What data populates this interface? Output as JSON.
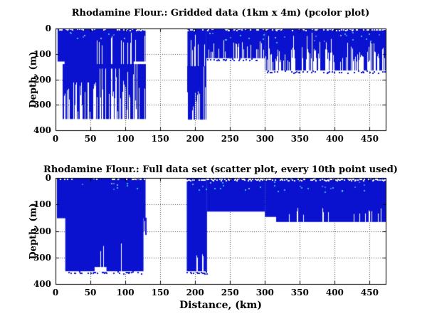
{
  "figure": {
    "background": "#ffffff",
    "axis_color": "#000000",
    "grid_color": "#4a4a4a",
    "text_color": "#000000"
  },
  "chart_data": [
    {
      "type": "pcolor",
      "title": "Rhodamine Flour.: Gridded data (1km x 4m) (pcolor plot)",
      "ylabel": "Depth, (m)",
      "xlabel": "",
      "xlim": [
        0,
        473
      ],
      "ylim": [
        0,
        400
      ],
      "y_axis_inverted": true,
      "grid": "dotted",
      "xticks": [
        0,
        50,
        100,
        150,
        200,
        250,
        300,
        350,
        400,
        450
      ],
      "yticks": [
        0,
        100,
        200,
        300,
        400
      ],
      "data_color": "#0a12d0",
      "speck_colors": [
        "#4f6fe0",
        "#2fb7e8",
        "#8fa8f0"
      ],
      "regions": [
        {
          "kind": "solid",
          "x0": 3,
          "x1": 129,
          "d0": 0,
          "d1": 130
        },
        {
          "kind": "solid",
          "x0": 13,
          "x1": 112,
          "d0": 0,
          "d1": 158
        },
        {
          "kind": "solid",
          "x0": 17,
          "x1": 62,
          "d0": 0,
          "d1": 212
        },
        {
          "kind": "streaks",
          "x0": 10,
          "x1": 129,
          "d0": 140,
          "d1": 356,
          "p_full": 0.55,
          "p_partial": 0.33,
          "d_min": 170,
          "d_max": 330,
          "seed": 11
        },
        {
          "kind": "white_cuts",
          "x0": 58,
          "x1": 128,
          "p": 0.14,
          "t_min": 15,
          "t_max": 70,
          "d1": 140,
          "w": 1,
          "seed": 12
        },
        {
          "kind": "solid",
          "x0": 189,
          "x1": 216,
          "d0": 0,
          "d1": 150
        },
        {
          "kind": "streaks",
          "x0": 189,
          "x1": 216,
          "d0": 148,
          "d1": 358,
          "p_full": 0.55,
          "p_partial": 0.35,
          "d_min": 200,
          "d_max": 340,
          "seed": 13
        },
        {
          "kind": "white_cuts",
          "x0": 190,
          "x1": 215,
          "p": 0.2,
          "t_min": 12,
          "t_max": 90,
          "d1": 148,
          "w": 1,
          "seed": 14
        },
        {
          "kind": "solid",
          "x0": 216,
          "x1": 300,
          "d0": 0,
          "d1": 117
        },
        {
          "kind": "dashes",
          "color": "#0a12d0",
          "x0": 217,
          "x1": 299,
          "d0": 117,
          "d1": 124,
          "p": 0.3,
          "w": 2,
          "h": 2,
          "seed": 15
        },
        {
          "kind": "white_cuts",
          "x0": 218,
          "x1": 299,
          "p": 0.28,
          "t_min": 45,
          "t_max": 95,
          "d1": 117,
          "w": 1,
          "seed": 16
        },
        {
          "kind": "solid",
          "x0": 300,
          "x1": 473,
          "d0": 0,
          "d1": 165
        },
        {
          "kind": "dashes",
          "color": "#0a12d0",
          "x0": 301,
          "x1": 472,
          "d0": 165,
          "d1": 173,
          "p": 0.3,
          "w": 2,
          "h": 2,
          "seed": 17
        },
        {
          "kind": "white_cuts",
          "x0": 301,
          "x1": 472,
          "p": 0.4,
          "t_min": 70,
          "t_max": 135,
          "d1": 165,
          "w": 1,
          "seed": 18
        },
        {
          "kind": "white_cuts",
          "x0": 305,
          "x1": 470,
          "p": 0.06,
          "t_min": 15,
          "t_max": 60,
          "d1": 165,
          "w": 1,
          "seed": 19
        },
        {
          "kind": "dashes",
          "color": "#ffffff",
          "x0": 4,
          "x1": 472,
          "d0": 0,
          "d1": 5,
          "p": 0.4,
          "w": 2,
          "h": 2,
          "seed": 20
        },
        {
          "kind": "specks",
          "n": 26,
          "x0": 218,
          "x1": 470,
          "d0": 12,
          "d1": 55,
          "seed": 21
        },
        {
          "kind": "specks",
          "n": 9,
          "x0": 20,
          "x1": 120,
          "d0": 12,
          "d1": 50,
          "seed": 22
        }
      ]
    },
    {
      "type": "scatter",
      "title": "Rhodamine Flour.: Full data set (scatter plot, every 10th point used)",
      "ylabel": "Depth, (m)",
      "xlabel": "Distance, (km)",
      "xlim": [
        0,
        473
      ],
      "ylim": [
        0,
        400
      ],
      "y_axis_inverted": true,
      "grid": "dotted",
      "xticks": [
        0,
        50,
        100,
        150,
        200,
        250,
        300,
        350,
        400,
        450
      ],
      "yticks": [
        0,
        100,
        200,
        300,
        400
      ],
      "data_color": "#0a12d0",
      "speck_colors": [
        "#4f6fe0",
        "#2fb7e8",
        "#8fa8f0"
      ],
      "regions": [
        {
          "kind": "solid",
          "x0": 2,
          "x1": 129,
          "d0": 0,
          "d1": 152
        },
        {
          "kind": "solid",
          "x0": 14,
          "x1": 126,
          "d0": 150,
          "d1": 352
        },
        {
          "kind": "streaks",
          "x0": 126,
          "x1": 130,
          "d0": 150,
          "d1": 215,
          "p_full": 0.5,
          "p_partial": 0.5,
          "d_min": 160,
          "d_max": 210,
          "seed": 31
        },
        {
          "kind": "white_rect",
          "x0": 56,
          "x1": 73,
          "d0": 336,
          "d1": 352
        },
        {
          "kind": "white_cuts",
          "x0": 58,
          "x1": 98,
          "p": 0.12,
          "t_min": 245,
          "t_max": 300,
          "d1": 352,
          "w": 1,
          "seed": 32
        },
        {
          "kind": "dashes",
          "color": "#0a12d0",
          "x0": 14,
          "x1": 126,
          "d0": 352,
          "d1": 359,
          "p": 0.55,
          "w": 2,
          "h": 2,
          "seed": 33
        },
        {
          "kind": "solid",
          "x0": 188,
          "x1": 217,
          "d0": 0,
          "d1": 352
        },
        {
          "kind": "white_cuts",
          "x0": 200,
          "x1": 215,
          "p": 0.2,
          "t_min": 285,
          "t_max": 305,
          "d1": 352,
          "w": 1,
          "seed": 34
        },
        {
          "kind": "dashes",
          "color": "#0a12d0",
          "x0": 188,
          "x1": 217,
          "d0": 352,
          "d1": 359,
          "p": 0.5,
          "w": 2,
          "h": 2,
          "seed": 35
        },
        {
          "kind": "solid",
          "x0": 217,
          "x1": 300,
          "d0": 0,
          "d1": 127
        },
        {
          "kind": "solid",
          "x0": 300,
          "x1": 316,
          "d0": 0,
          "d1": 147
        },
        {
          "kind": "solid",
          "x0": 316,
          "x1": 473,
          "d0": 0,
          "d1": 166
        },
        {
          "kind": "white_cuts",
          "x0": 320,
          "x1": 470,
          "p": 0.08,
          "t_min": 110,
          "t_max": 140,
          "d1": 166,
          "w": 1,
          "seed": 36
        },
        {
          "kind": "dashes",
          "color": "#ffffff",
          "x0": 188,
          "x1": 473,
          "d0": 1,
          "d1": 8,
          "p": 0.6,
          "w": 2,
          "h": 2,
          "seed": 37
        },
        {
          "kind": "dashes",
          "color": "#ffffff",
          "x0": 3,
          "x1": 128,
          "d0": 0,
          "d1": 4,
          "p": 0.25,
          "w": 2,
          "h": 2,
          "seed": 38
        },
        {
          "kind": "specks",
          "n": 30,
          "x0": 195,
          "x1": 470,
          "d0": 12,
          "d1": 50,
          "seed": 39
        },
        {
          "kind": "specks",
          "n": 9,
          "x0": 15,
          "x1": 120,
          "d0": 15,
          "d1": 45,
          "seed": 40
        }
      ]
    }
  ]
}
